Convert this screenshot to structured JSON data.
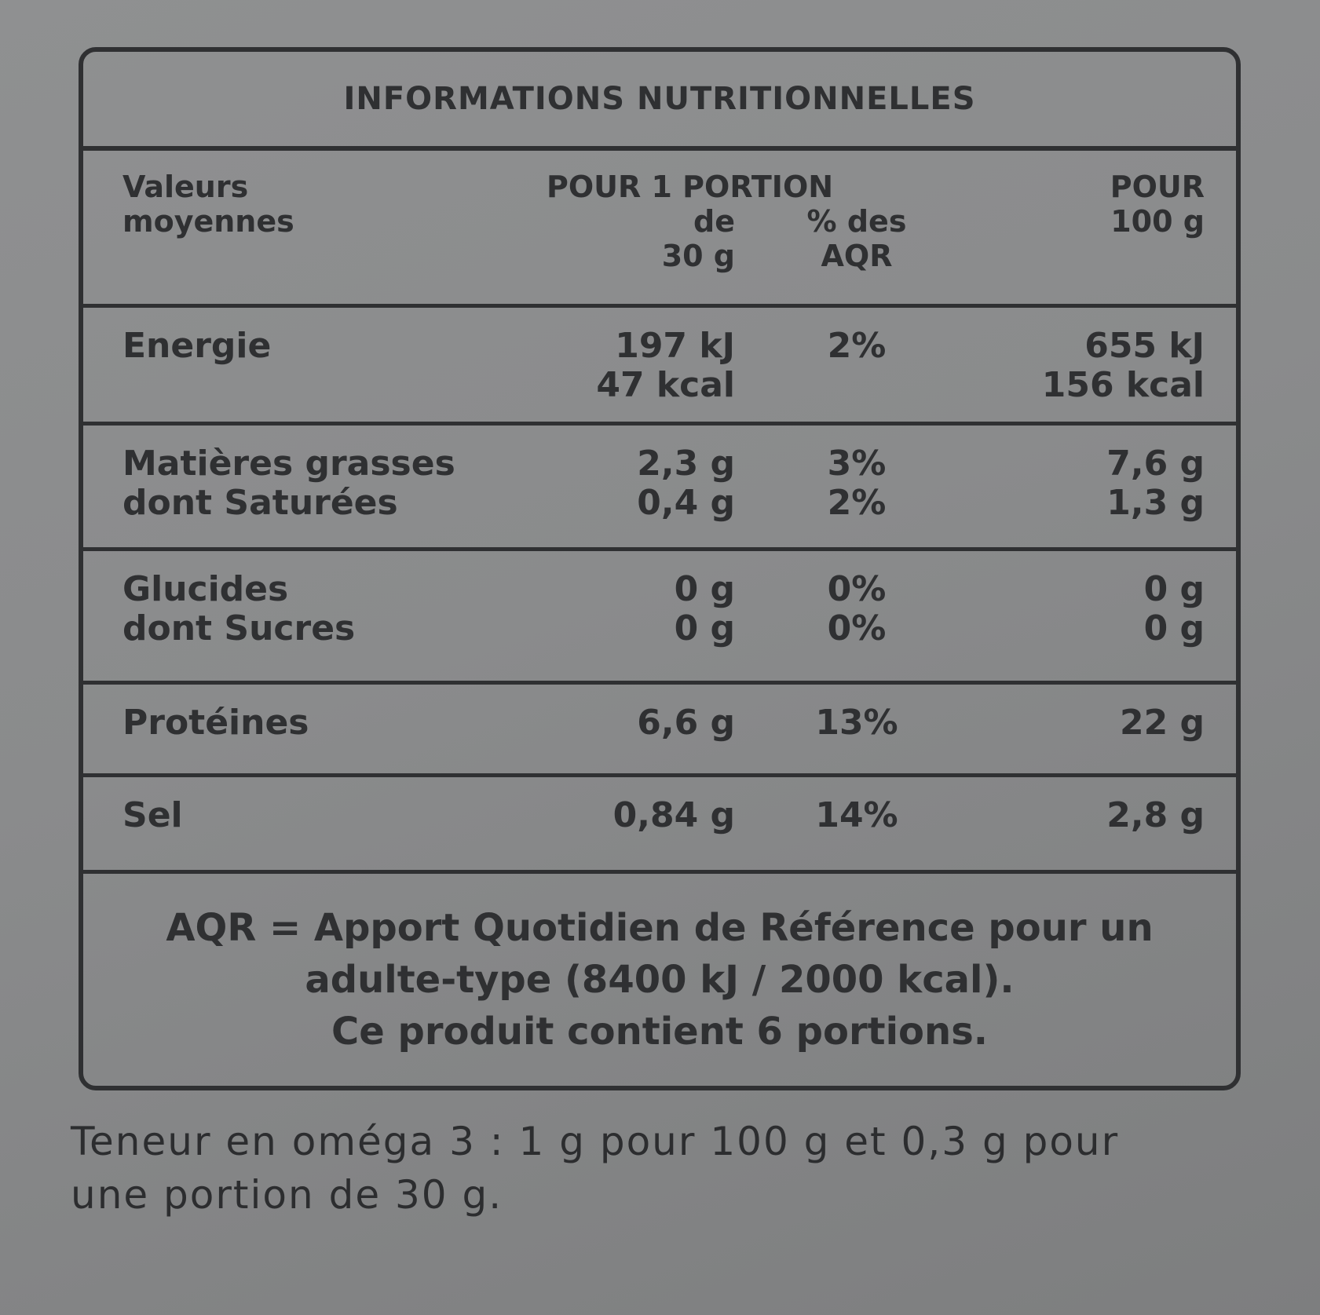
{
  "title": "INFORMATIONS NUTRITIONNELLES",
  "table": {
    "header": {
      "label": [
        "Valeurs",
        "moyennes"
      ],
      "portion": "POUR 1 PORTION",
      "portion_qty": [
        "de",
        "30 g"
      ],
      "aqr": [
        "% des",
        "AQR"
      ],
      "per100": [
        "POUR",
        "100 g"
      ]
    },
    "rows": [
      {
        "label": [
          "Energie"
        ],
        "portion": [
          "197 kJ",
          "47 kcal"
        ],
        "aqr": [
          "2%"
        ],
        "per100": [
          "655 kJ",
          "156 kcal"
        ]
      },
      {
        "label": [
          "Matières grasses",
          "dont Saturées"
        ],
        "portion": [
          "2,3 g",
          "0,4 g"
        ],
        "aqr": [
          "3%",
          "2%"
        ],
        "per100": [
          "7,6 g",
          "1,3 g"
        ]
      },
      {
        "label": [
          "Glucides",
          "dont Sucres"
        ],
        "portion": [
          "0 g",
          "0 g"
        ],
        "aqr": [
          "0%",
          "0%"
        ],
        "per100": [
          "0 g",
          "0 g"
        ]
      },
      {
        "label": [
          "Protéines"
        ],
        "portion": [
          "6,6 g"
        ],
        "aqr": [
          "13%"
        ],
        "per100": [
          "22 g"
        ]
      },
      {
        "label": [
          "Sel"
        ],
        "portion": [
          "0,84 g"
        ],
        "aqr": [
          "14%"
        ],
        "per100": [
          "2,8 g"
        ]
      }
    ]
  },
  "footnote": [
    "AQR = Apport Quotidien de Référence pour un",
    "adulte-type (8400 kJ / 2000 kcal).",
    "Ce produit contient 6 portions."
  ],
  "note": [
    "Teneur en oméga 3 : 1 g pour 100 g et 0,3 g pour",
    "une portion de 30 g."
  ]
}
